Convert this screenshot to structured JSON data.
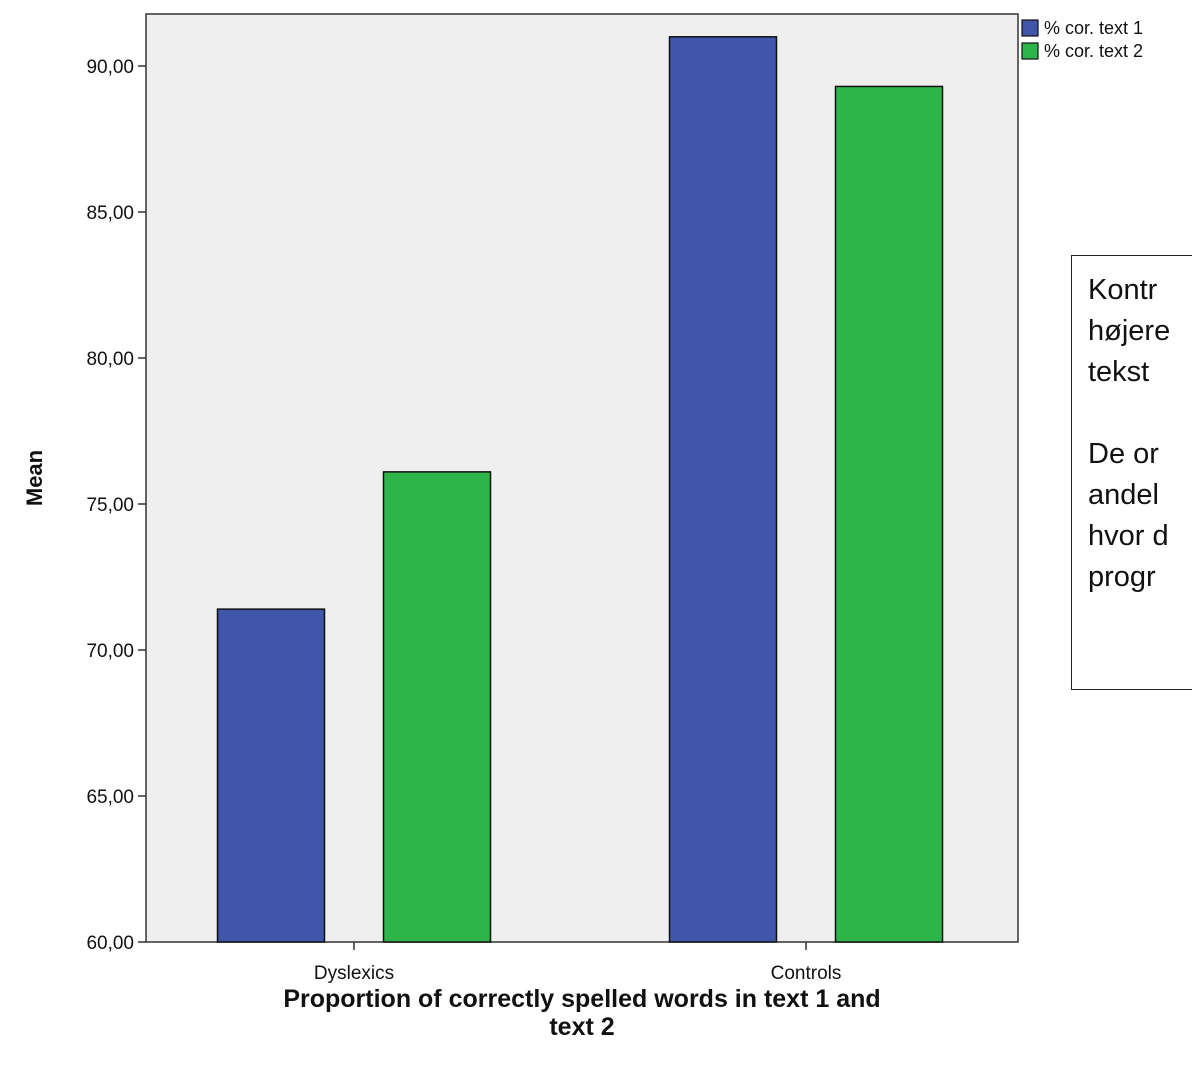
{
  "chart_data": {
    "type": "bar",
    "title": "",
    "xlabel": "Proportion of correctly spelled words in text 1 and text 2",
    "xlabel_lines": [
      "Proportion of correctly spelled words in text 1 and",
      "text 2"
    ],
    "ylabel": "Mean",
    "ylim": [
      60,
      92
    ],
    "yticks": [
      "60,00",
      "65,00",
      "70,00",
      "75,00",
      "80,00",
      "85,00",
      "90,00"
    ],
    "ytick_values": [
      60,
      65,
      70,
      75,
      80,
      85,
      90
    ],
    "categories": [
      "Dyslexics",
      "Controls"
    ],
    "series": [
      {
        "name": "% cor. text 1",
        "color": "#3f56aa",
        "values": [
          71.4,
          91.0
        ]
      },
      {
        "name": "% cor. text 2",
        "color": "#2db54a",
        "values": [
          76.1,
          89.3
        ]
      }
    ],
    "legend_position": "top-right",
    "plot_background": "#efefef",
    "grid": false
  },
  "note": {
    "paragraphs": [
      "Kontr\nhøjere\ntekst",
      "De or\nandel\nhvor d\nprogr"
    ]
  }
}
